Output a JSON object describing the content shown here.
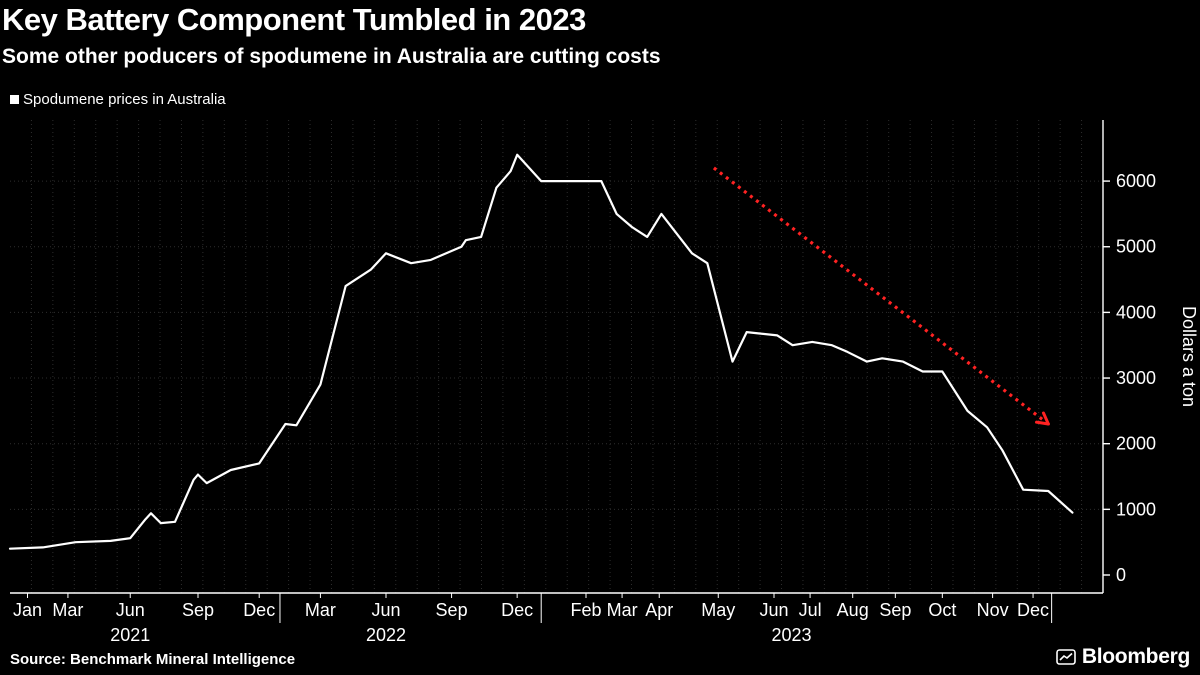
{
  "header": {
    "title": "Key Battery Component Tumbled in 2023",
    "subtitle": "Some other poducers of spodumene in Australia are cutting costs"
  },
  "legend": {
    "label": "Spodumene prices in Australia",
    "swatch_color": "#ffffff"
  },
  "footer": {
    "source": "Source: Benchmark Mineral Intelligence",
    "brand": "Bloomberg"
  },
  "chart_data": {
    "type": "line",
    "title": "Key Battery Component Tumbled in 2023",
    "subtitle": "Some other poducers of spodumene in Australia are cutting costs",
    "legend": "Spodumene prices in Australia",
    "ylabel": "Dollars a ton",
    "ylim": [
      0,
      6900
    ],
    "yticks": [
      0,
      1000,
      2000,
      3000,
      4000,
      5000,
      6000
    ],
    "grid": true,
    "legend_position": "top-left",
    "colors": {
      "line": "#ffffff",
      "trend": "#ff2222",
      "grid": "#2d2d2d",
      "axis": "#ffffff",
      "background": "#000000"
    },
    "x_ticks": [
      {
        "pos": 0.016,
        "label": "Jan"
      },
      {
        "pos": 0.053,
        "label": "Mar"
      },
      {
        "pos": 0.11,
        "label": "Jun"
      },
      {
        "pos": 0.172,
        "label": "Sep"
      },
      {
        "pos": 0.228,
        "label": "Dec"
      },
      {
        "pos": 0.284,
        "label": "Mar"
      },
      {
        "pos": 0.344,
        "label": "Jun"
      },
      {
        "pos": 0.404,
        "label": "Sep"
      },
      {
        "pos": 0.464,
        "label": "Dec"
      },
      {
        "pos": 0.527,
        "label": "Feb"
      },
      {
        "pos": 0.56,
        "label": "Mar"
      },
      {
        "pos": 0.594,
        "label": "Apr"
      },
      {
        "pos": 0.648,
        "label": "May"
      },
      {
        "pos": 0.699,
        "label": "Jun"
      },
      {
        "pos": 0.732,
        "label": "Jul"
      },
      {
        "pos": 0.771,
        "label": "Aug"
      },
      {
        "pos": 0.81,
        "label": "Sep"
      },
      {
        "pos": 0.853,
        "label": "Oct"
      },
      {
        "pos": 0.899,
        "label": "Nov"
      },
      {
        "pos": 0.936,
        "label": "Dec"
      }
    ],
    "year_labels": [
      {
        "pos": 0.11,
        "label": "2021"
      },
      {
        "pos": 0.344,
        "label": "2022"
      },
      {
        "pos": 0.715,
        "label": "2023"
      }
    ],
    "year_separators": [
      0.247,
      0.486,
      0.953
    ],
    "series": [
      {
        "name": "Spodumene prices in Australia",
        "points": [
          [
            0.0,
            400
          ],
          [
            0.03,
            420
          ],
          [
            0.06,
            500
          ],
          [
            0.092,
            520
          ],
          [
            0.11,
            560
          ],
          [
            0.124,
            850
          ],
          [
            0.129,
            940
          ],
          [
            0.138,
            790
          ],
          [
            0.151,
            810
          ],
          [
            0.168,
            1450
          ],
          [
            0.172,
            1530
          ],
          [
            0.18,
            1400
          ],
          [
            0.202,
            1600
          ],
          [
            0.228,
            1700
          ],
          [
            0.252,
            2300
          ],
          [
            0.262,
            2280
          ],
          [
            0.284,
            2900
          ],
          [
            0.307,
            4400
          ],
          [
            0.33,
            4650
          ],
          [
            0.344,
            4900
          ],
          [
            0.367,
            4750
          ],
          [
            0.385,
            4800
          ],
          [
            0.413,
            5000
          ],
          [
            0.417,
            5100
          ],
          [
            0.431,
            5150
          ],
          [
            0.445,
            5900
          ],
          [
            0.458,
            6150
          ],
          [
            0.464,
            6400
          ],
          [
            0.486,
            6000
          ],
          [
            0.541,
            6000
          ],
          [
            0.555,
            5500
          ],
          [
            0.569,
            5300
          ],
          [
            0.583,
            5150
          ],
          [
            0.596,
            5500
          ],
          [
            0.624,
            4900
          ],
          [
            0.638,
            4750
          ],
          [
            0.661,
            3250
          ],
          [
            0.674,
            3700
          ],
          [
            0.702,
            3650
          ],
          [
            0.716,
            3500
          ],
          [
            0.734,
            3550
          ],
          [
            0.752,
            3500
          ],
          [
            0.766,
            3400
          ],
          [
            0.784,
            3250
          ],
          [
            0.798,
            3300
          ],
          [
            0.817,
            3250
          ],
          [
            0.835,
            3100
          ],
          [
            0.853,
            3100
          ],
          [
            0.876,
            2500
          ],
          [
            0.894,
            2250
          ],
          [
            0.908,
            1900
          ],
          [
            0.927,
            1300
          ],
          [
            0.95,
            1280
          ],
          [
            0.972,
            950
          ]
        ]
      }
    ],
    "trend_arrow": {
      "from": [
        0.644,
        6200
      ],
      "to": [
        0.95,
        2300
      ]
    }
  }
}
